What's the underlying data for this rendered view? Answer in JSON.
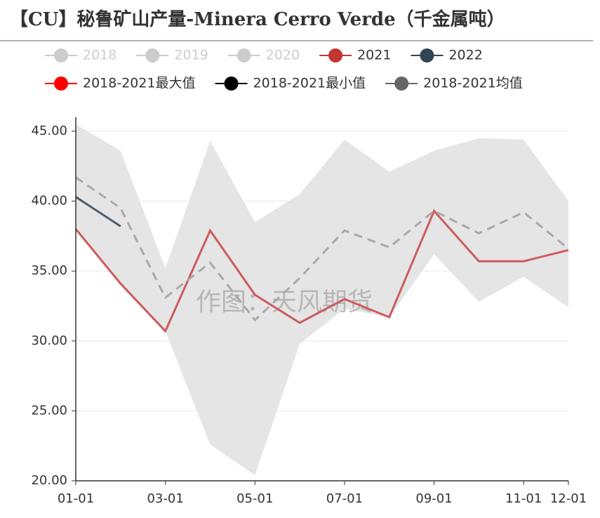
{
  "chart_data": {
    "type": "line",
    "title": "【CU】秘鲁矿山产量-Minera Cerro Verde（千金属吨）",
    "watermark": "作图：天风期货",
    "categories": [
      "01-01",
      null,
      "03-01",
      null,
      "05-01",
      null,
      "07-01",
      null,
      "09-01",
      null,
      "11-01",
      "12-01"
    ],
    "ylim": [
      20,
      46
    ],
    "yticks": [
      {
        "value": 20,
        "label": "20.00"
      },
      {
        "value": 25,
        "label": "25.00"
      },
      {
        "value": 30,
        "label": "30.00"
      },
      {
        "value": 35,
        "label": "35.00"
      },
      {
        "value": 40,
        "label": "40.00"
      },
      {
        "value": 45,
        "label": "45.00"
      }
    ],
    "grid": true,
    "band_color": "#e5e5e5",
    "series": [
      {
        "name": "2018",
        "color": "#cccccc",
        "visible": false
      },
      {
        "name": "2019",
        "color": "#cccccc",
        "visible": false
      },
      {
        "name": "2020",
        "color": "#cccccc",
        "visible": false
      },
      {
        "name": "2021",
        "color": "#c23531",
        "line_color": "#cd5c5c",
        "values": [
          38.0,
          34.1,
          30.7,
          37.9,
          33.3,
          31.3,
          33.0,
          31.7,
          39.3,
          35.7,
          35.7,
          36.5
        ]
      },
      {
        "name": "2022",
        "color": "#2f4554",
        "line_color": "#4d5e6e",
        "values": [
          40.3,
          38.2,
          null,
          null,
          null,
          null,
          null,
          null,
          null,
          null,
          null,
          null
        ]
      },
      {
        "name": "2018-2021最大值",
        "color": "#ff0000",
        "role": "band_max",
        "values": [
          45.5,
          43.6,
          35.2,
          44.3,
          38.5,
          40.5,
          44.4,
          42.1,
          43.6,
          44.5,
          44.4,
          40.0
        ]
      },
      {
        "name": "2018-2021最小值",
        "color": "#000000",
        "role": "band_min",
        "values": [
          38.0,
          34.1,
          30.7,
          22.6,
          20.4,
          29.8,
          32.3,
          31.7,
          36.2,
          32.8,
          34.6,
          32.4
        ]
      },
      {
        "name": "2018-2021均值",
        "color": "#666666",
        "line_color": "#a9a9a9",
        "dash": true,
        "values": [
          41.7,
          39.5,
          33.1,
          35.6,
          31.5,
          34.5,
          37.9,
          36.7,
          39.3,
          37.7,
          39.2,
          36.6
        ]
      }
    ]
  }
}
